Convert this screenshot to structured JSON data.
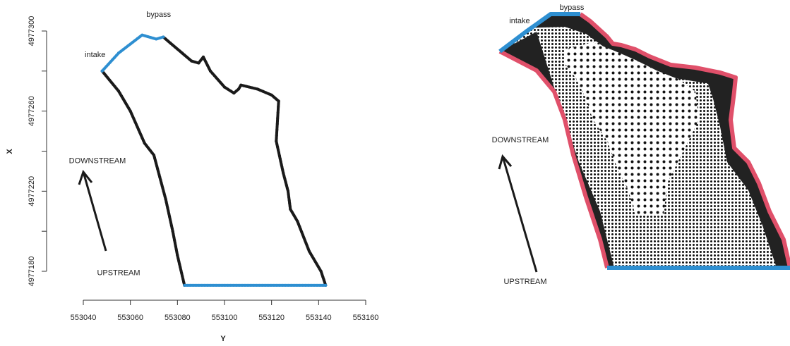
{
  "colors": {
    "boundary": "#1a1a1a",
    "transect": "#2e8fd1",
    "wall": "#e0506a",
    "mesh_fill": "#222222",
    "mesh_node": "#111111"
  },
  "chart_data": [
    {
      "type": "scatter",
      "panel": "left",
      "xlabel": "Y",
      "ylabel": "X",
      "xlim": [
        553040,
        553160
      ],
      "ylim": [
        4977170,
        4977300
      ],
      "x_ticks": [
        553040,
        553060,
        553080,
        553100,
        553120,
        553140,
        553160
      ],
      "y_ticks": [
        4977180,
        4977220,
        4977260,
        4977300
      ],
      "x_tick_labels": [
        "553040",
        "553060",
        "553080",
        "553100",
        "553120",
        "553140",
        "553160"
      ],
      "y_tick_labels": [
        "4977180",
        "4977220",
        "4977260",
        "4977300"
      ],
      "series": [
        {
          "role": "boundary",
          "x": [
            553048,
            553055,
            553060,
            553066,
            553070,
            553075,
            553078,
            553080,
            553083
          ],
          "y": [
            4977280,
            4977270,
            4977260,
            4977244,
            4977238,
            4977216,
            4977200,
            4977188,
            4977173
          ]
        },
        {
          "role": "boundary",
          "x": [
            553074,
            553077,
            553082,
            553086,
            553089,
            553091,
            553094,
            553100,
            553104,
            553106,
            553107,
            553114,
            553120,
            553123,
            553122,
            553125,
            553127,
            553128,
            553131,
            553136,
            553141,
            553143
          ],
          "y": [
            4977297,
            4977294,
            4977289,
            4977285,
            4977284,
            4977287,
            4977280,
            4977272,
            4977269,
            4977271,
            4977273,
            4977271,
            4977268,
            4977265,
            4977245,
            4977229,
            4977220,
            4977211,
            4977205,
            4977190,
            4977180,
            4977173
          ]
        },
        {
          "role": "intake",
          "x": [
            553048,
            553055,
            553065,
            553071,
            553074
          ],
          "y": [
            4977280,
            4977289,
            4977298,
            4977296,
            4977297
          ]
        },
        {
          "role": "outflow",
          "x": [
            553083,
            553143
          ],
          "y": [
            4977173,
            4977173
          ]
        }
      ],
      "annotations": [
        {
          "text": "bypass",
          "x": 553072,
          "y": 4977307
        },
        {
          "text": "intake",
          "x": 553045,
          "y": 4977287
        },
        {
          "text": "DOWNSTREAM",
          "x": 553046,
          "y": 4977234
        },
        {
          "text": "UPSTREAM",
          "x": 553055,
          "y": 4977178
        }
      ]
    },
    {
      "type": "scatter",
      "panel": "right",
      "annotations": [
        {
          "text": "bypass"
        },
        {
          "text": "intake"
        },
        {
          "text": "DOWNSTREAM"
        },
        {
          "text": "UPSTREAM"
        }
      ]
    }
  ]
}
